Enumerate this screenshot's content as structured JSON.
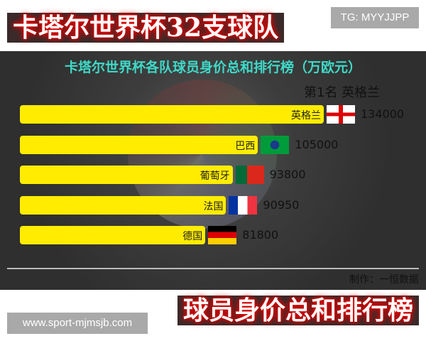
{
  "badge_tg": "TG: MYYJJPP",
  "watermark": "www.sport-mjmsjb.com",
  "chart_data": {
    "type": "bar",
    "orientation": "horizontal",
    "title": "卡塔尔世界杯各队球员身价总和排行榜（万欧元）",
    "rank_label": "第1名 英格兰",
    "categories": [
      "英格兰",
      "巴西",
      "葡萄牙",
      "法国",
      "德国"
    ],
    "values": [
      134000,
      105000,
      93800,
      90950,
      81800
    ],
    "flags": [
      "england",
      "brazil",
      "portugal",
      "france",
      "germany"
    ],
    "bar_color": "#ffec00",
    "title_color": "#3fd9c8",
    "credit": "制作：一恒数据"
  },
  "overlay": {
    "line1": "卡塔尔世界杯32支球队",
    "line2": "球员身价总和排行榜"
  }
}
